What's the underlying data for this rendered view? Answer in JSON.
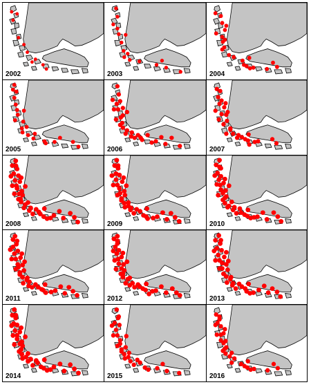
{
  "figure": {
    "panels": [
      {
        "year": "2002",
        "density": 1
      },
      {
        "year": "2003",
        "density": 2
      },
      {
        "year": "2004",
        "density": 3
      },
      {
        "year": "2005",
        "density": 3
      },
      {
        "year": "2006",
        "density": 4
      },
      {
        "year": "2007",
        "density": 4
      },
      {
        "year": "2008",
        "density": 5
      },
      {
        "year": "2009",
        "density": 5
      },
      {
        "year": "2010",
        "density": 5
      },
      {
        "year": "2011",
        "density": 5
      },
      {
        "year": "2012",
        "density": 5
      },
      {
        "year": "2013",
        "density": 5
      },
      {
        "year": "2014",
        "density": 5
      },
      {
        "year": "2015",
        "density": 4
      },
      {
        "year": "2016",
        "density": 4
      }
    ]
  },
  "colors": {
    "land": "#c4c4c4",
    "coastline": "#000000",
    "sea": "#ffffff",
    "occurrence": "#ff0000",
    "border": "#000000"
  }
}
